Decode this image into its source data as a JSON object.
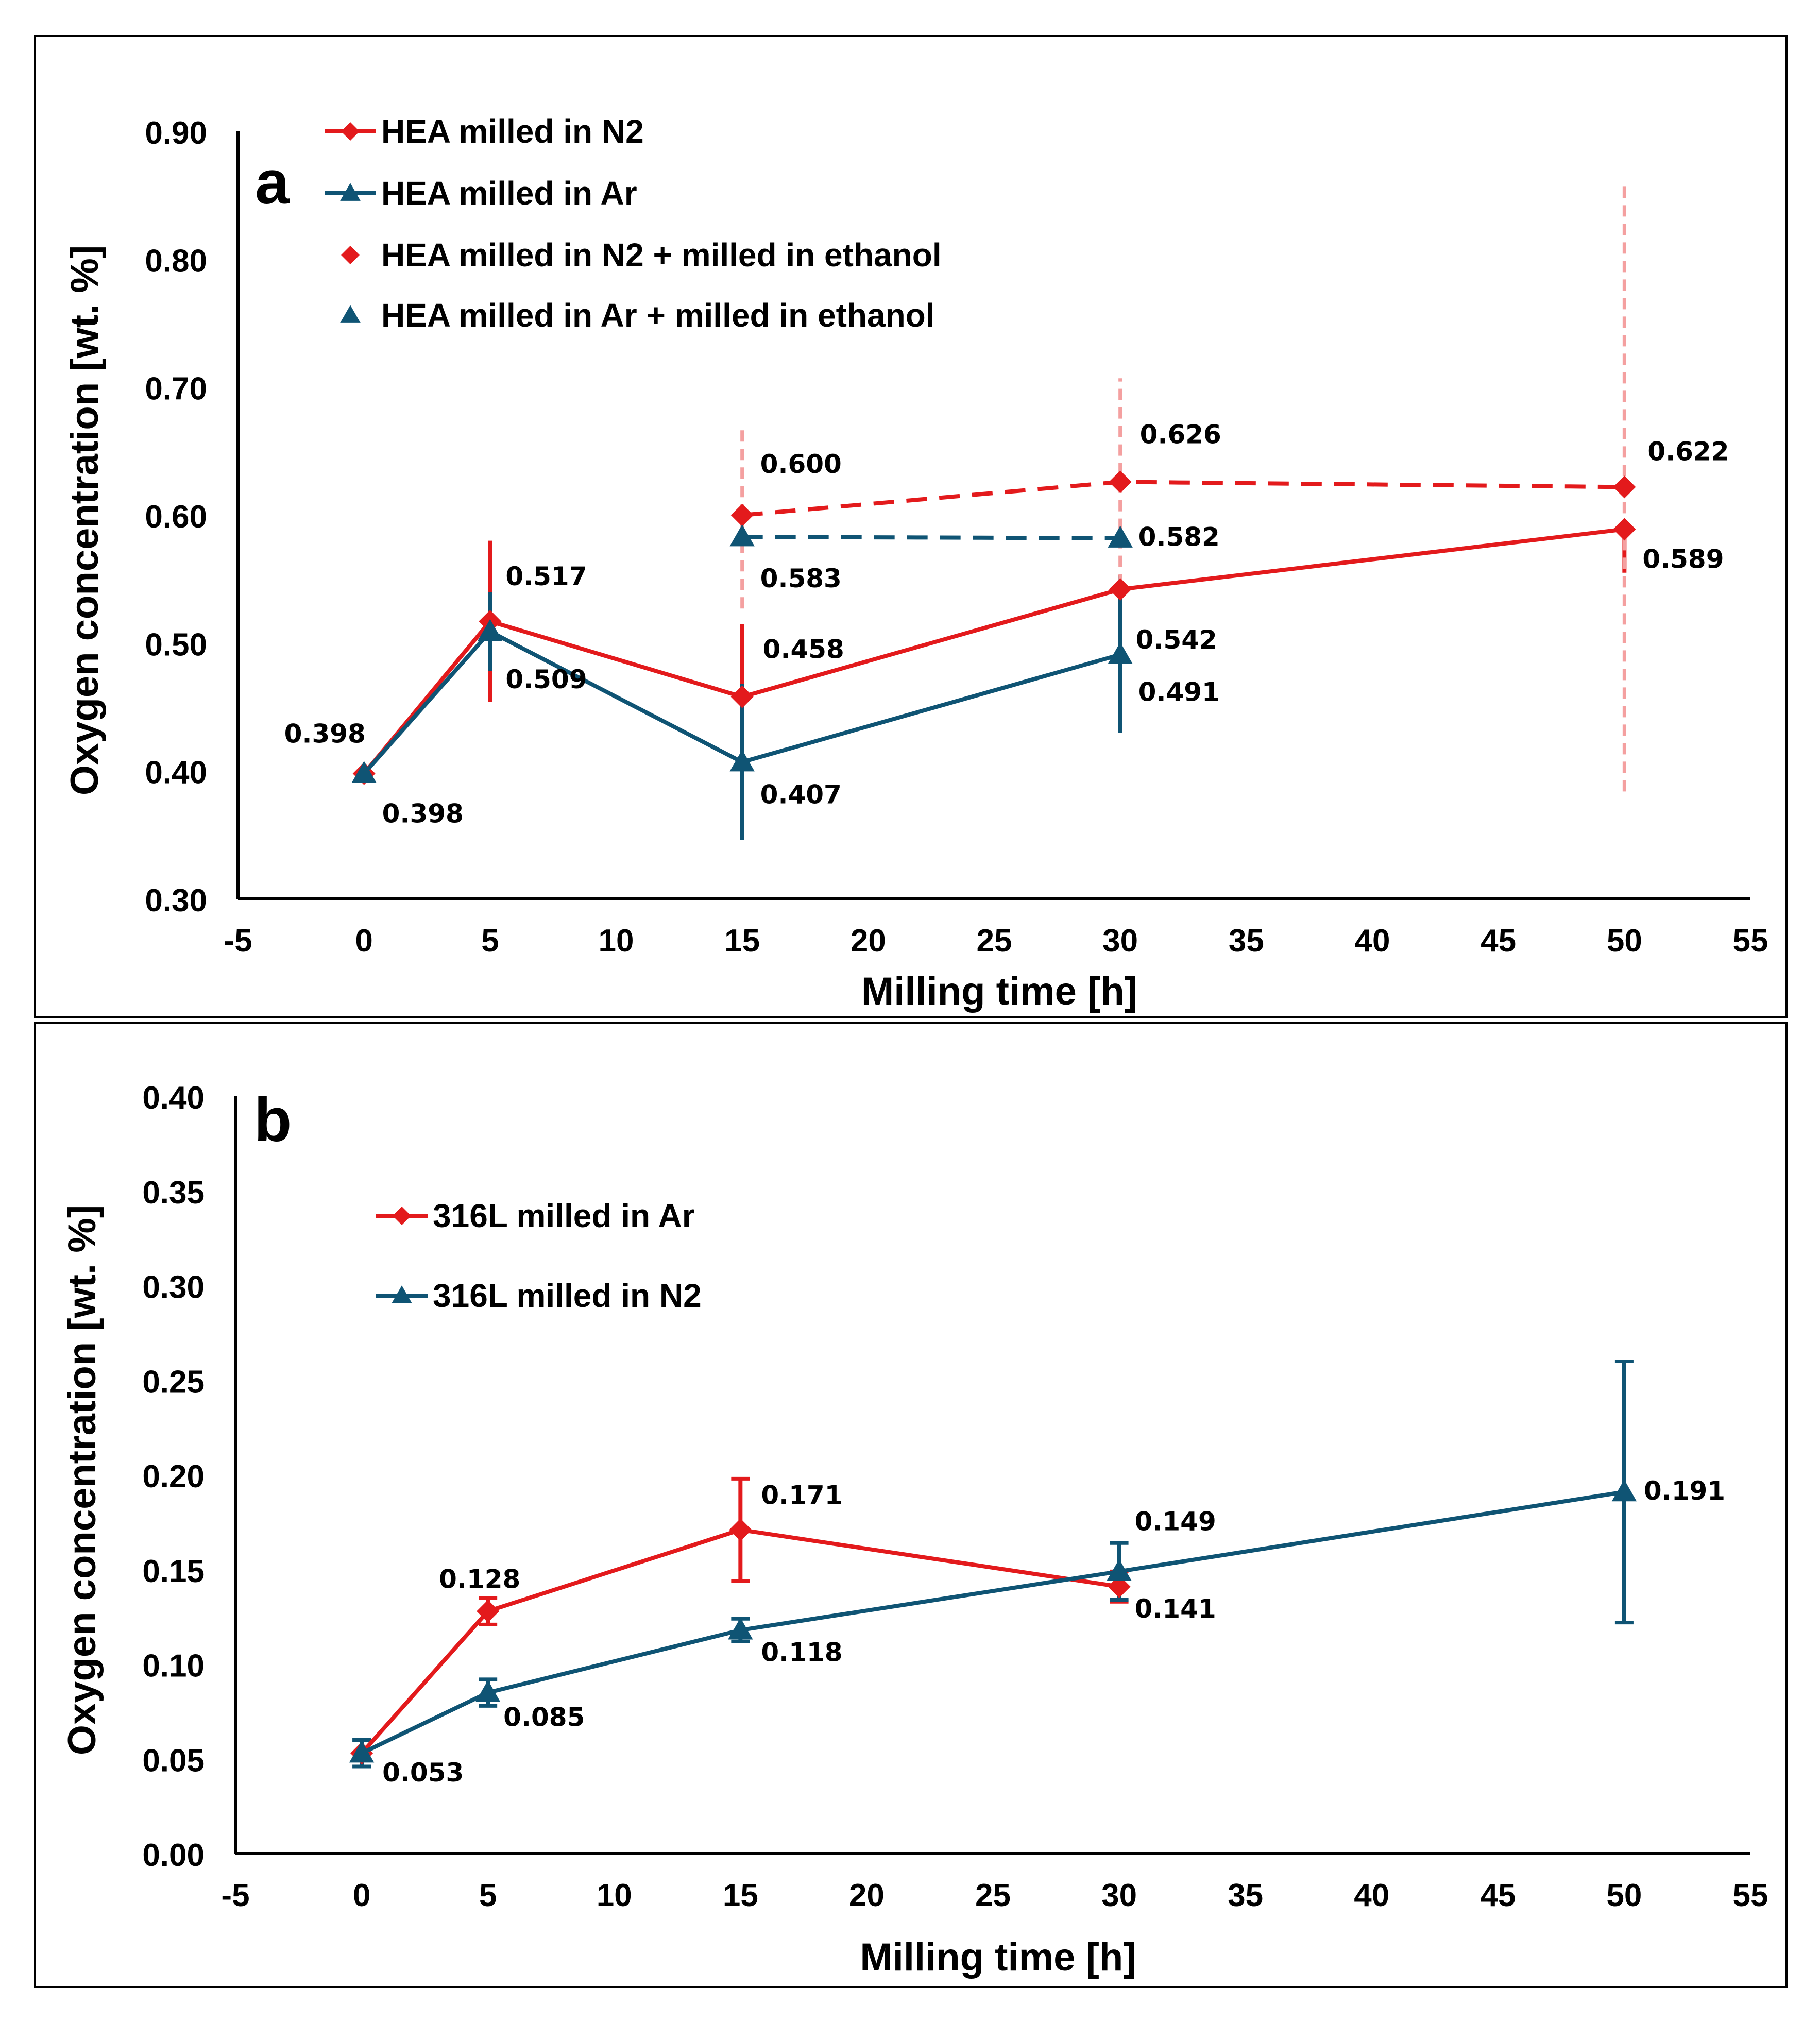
{
  "chart_data": [
    {
      "type": "line",
      "panel_label": "a",
      "xlabel": "Milling time  [h]",
      "ylabel": "Oxygen concentration [wt. %]",
      "xlim": [
        -5,
        55
      ],
      "ylim": [
        0.3,
        0.9
      ],
      "xticks": [
        "-5",
        "0",
        "5",
        "10",
        "15",
        "20",
        "25",
        "30",
        "35",
        "40",
        "45",
        "50",
        "55"
      ],
      "yticks": [
        "0.30",
        "0.40",
        "0.50",
        "0.60",
        "0.70",
        "0.80",
        "0.90"
      ],
      "legend_position": "top-left",
      "series": [
        {
          "name": "HEA milled in N2",
          "color": "#e31a1c",
          "marker": "diamond",
          "dashed": false,
          "x": [
            0,
            5,
            15,
            30,
            50
          ],
          "y": [
            0.398,
            0.517,
            0.458,
            0.542,
            0.589
          ],
          "err_low": [
            0.398,
            0.454,
            0.401,
            0.531,
            0.555
          ],
          "err_high": [
            0.398,
            0.58,
            0.515,
            0.553,
            0.589
          ],
          "labels": [
            "0.398",
            "0.517",
            "0.458",
            "0.542",
            "0.589"
          ]
        },
        {
          "name": "HEA milled in Ar",
          "color": "#0f5474",
          "marker": "triangle",
          "dashed": false,
          "x": [
            0,
            5,
            15,
            30
          ],
          "y": [
            0.398,
            0.509,
            0.407,
            0.491
          ],
          "err_low": [
            0.398,
            0.478,
            0.346,
            0.43
          ],
          "err_high": [
            0.398,
            0.54,
            0.468,
            0.552
          ],
          "labels": [
            "0.398",
            "0.509",
            "0.407",
            "0.491"
          ]
        },
        {
          "name": "HEA milled in N2 + milled in ethanol",
          "color": "#e31a1c",
          "marker": "diamond",
          "dashed": true,
          "x": [
            15,
            30,
            50
          ],
          "y": [
            0.6,
            0.626,
            0.622
          ],
          "err_low": [
            0.527,
            0.545,
            0.384
          ],
          "err_high": [
            0.672,
            0.707,
            0.86
          ],
          "labels": [
            "0.600",
            "0.626",
            "0.622"
          ]
        },
        {
          "name": "HEA milled in Ar + milled in ethanol",
          "color": "#0f5474",
          "marker": "triangle",
          "dashed": true,
          "x": [
            15,
            30
          ],
          "y": [
            0.583,
            0.582
          ],
          "labels": [
            "0.583",
            "0.582"
          ]
        }
      ]
    },
    {
      "type": "line",
      "panel_label": "b",
      "xlabel": "Milling time [h]",
      "ylabel": "Oxygen concentration [wt. %]",
      "xlim": [
        -5,
        55
      ],
      "ylim": [
        0.0,
        0.4
      ],
      "xticks": [
        "-5",
        "0",
        "5",
        "10",
        "15",
        "20",
        "25",
        "30",
        "35",
        "40",
        "45",
        "50",
        "55"
      ],
      "yticks": [
        "0.00",
        "0.05",
        "0.10",
        "0.15",
        "0.20",
        "0.25",
        "0.30",
        "0.35",
        "0.40"
      ],
      "legend_position": "top-left",
      "series": [
        {
          "name": "316L milled in Ar",
          "color": "#e31a1c",
          "marker": "diamond",
          "dashed": false,
          "x": [
            0,
            5,
            15,
            30
          ],
          "y": [
            0.053,
            0.128,
            0.171,
            0.141
          ],
          "err_low": [
            0.053,
            0.121,
            0.144,
            0.133
          ],
          "err_high": [
            0.053,
            0.135,
            0.198,
            0.149
          ],
          "labels": [
            null,
            "0.128",
            "0.171",
            "0.141"
          ]
        },
        {
          "name": "316L milled in N2",
          "color": "#0f5474",
          "marker": "triangle",
          "dashed": false,
          "x": [
            0,
            5,
            15,
            30,
            50
          ],
          "y": [
            0.053,
            0.085,
            0.118,
            0.149,
            0.191
          ],
          "err_low": [
            0.046,
            0.078,
            0.112,
            0.134,
            0.122
          ],
          "err_high": [
            0.06,
            0.092,
            0.124,
            0.164,
            0.26
          ],
          "labels": [
            "0.053",
            "0.085",
            "0.118",
            "0.149",
            "0.191"
          ]
        }
      ]
    }
  ]
}
